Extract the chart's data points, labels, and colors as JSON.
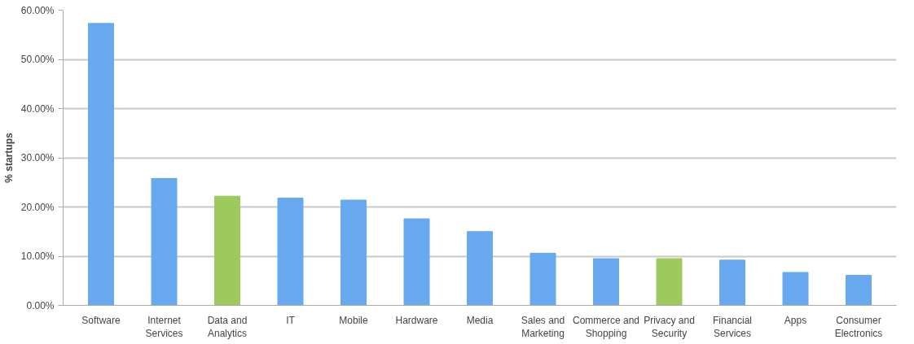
{
  "chart_data": {
    "type": "bar",
    "ylabel": "% startups",
    "categories": [
      "Software",
      "Internet Services",
      "Data and Analytics",
      "IT",
      "Mobile",
      "Hardware",
      "Media",
      "Sales and Marketing",
      "Commerce and Shopping",
      "Privacy and Security",
      "Financial Services",
      "Apps",
      "Consumer Electronics"
    ],
    "values": [
      57.3,
      25.8,
      22.2,
      21.8,
      21.4,
      17.6,
      15.0,
      10.6,
      9.5,
      9.5,
      9.2,
      6.7,
      6.1
    ],
    "colors": [
      "#68a8ee",
      "#68a8ee",
      "#9ec95c",
      "#68a8ee",
      "#68a8ee",
      "#68a8ee",
      "#68a8ee",
      "#68a8ee",
      "#68a8ee",
      "#9ec95c",
      "#68a8ee",
      "#68a8ee",
      "#68a8ee"
    ],
    "ylim": [
      0,
      60
    ],
    "yticks": [
      {
        "value": 0,
        "label": "0.00%"
      },
      {
        "value": 10,
        "label": "10.00%"
      },
      {
        "value": 20,
        "label": "20.00%"
      },
      {
        "value": 30,
        "label": "30.00%"
      },
      {
        "value": 40,
        "label": "40.00%"
      },
      {
        "value": 50,
        "label": "50.00%"
      },
      {
        "value": 60,
        "label": "60.00%"
      }
    ],
    "grid": "y"
  }
}
